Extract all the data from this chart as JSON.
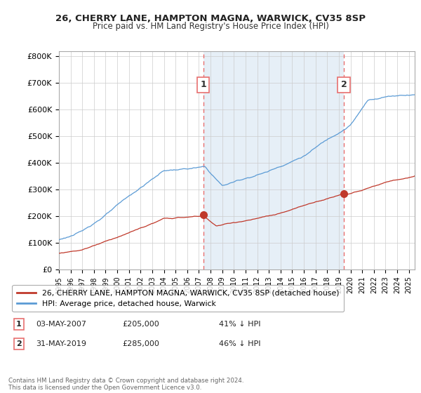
{
  "title": "26, CHERRY LANE, HAMPTON MAGNA, WARWICK, CV35 8SP",
  "subtitle": "Price paid vs. HM Land Registry's House Price Index (HPI)",
  "ylabel_ticks": [
    "£0",
    "£100K",
    "£200K",
    "£300K",
    "£400K",
    "£500K",
    "£600K",
    "£700K",
    "£800K"
  ],
  "ytick_values": [
    0,
    100000,
    200000,
    300000,
    400000,
    500000,
    600000,
    700000,
    800000
  ],
  "ylim": [
    0,
    820000
  ],
  "xlim_start": 1995.0,
  "xlim_end": 2025.5,
  "hpi_color": "#5b9bd5",
  "hpi_fill_color": "#dce9f5",
  "property_color": "#c0392b",
  "vline_color": "#e87070",
  "marker1_x": 2007.37,
  "marker1_y": 205000,
  "marker2_x": 2019.42,
  "marker2_y": 285000,
  "marker1_label": "1",
  "marker2_label": "2",
  "legend_property": "26, CHERRY LANE, HAMPTON MAGNA, WARWICK, CV35 8SP (detached house)",
  "legend_hpi": "HPI: Average price, detached house, Warwick",
  "ann1_num": "1",
  "ann1_date": "03-MAY-2007",
  "ann1_price": "£205,000",
  "ann1_hpi": "41% ↓ HPI",
  "ann2_num": "2",
  "ann2_date": "31-MAY-2019",
  "ann2_price": "£285,000",
  "ann2_hpi": "46% ↓ HPI",
  "footer": "Contains HM Land Registry data © Crown copyright and database right 2024.\nThis data is licensed under the Open Government Licence v3.0.",
  "bg_color": "#ffffff",
  "grid_color": "#cccccc"
}
